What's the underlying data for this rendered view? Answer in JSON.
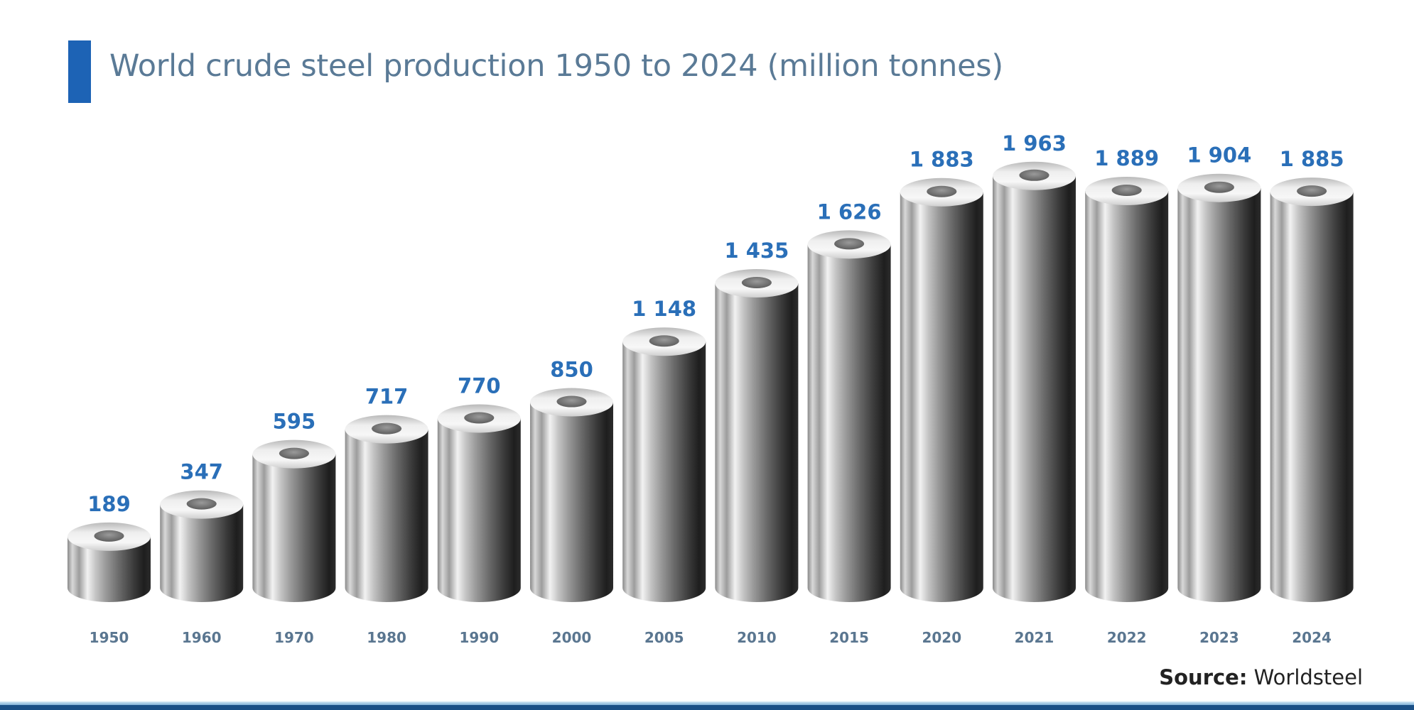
{
  "chart_data": {
    "type": "bar",
    "style": "3d-cylinder",
    "title": "World crude steel production 1950 to 2024 (million tonnes)",
    "xlabel": "",
    "ylabel": "",
    "categories": [
      "1950",
      "1960",
      "1970",
      "1980",
      "1990",
      "2000",
      "2005",
      "2010",
      "2015",
      "2020",
      "2021",
      "2022",
      "2023",
      "2024"
    ],
    "values": [
      189,
      347,
      595,
      717,
      770,
      850,
      1148,
      1435,
      1626,
      1883,
      1963,
      1889,
      1904,
      1885
    ],
    "value_labels": [
      "189",
      "347",
      "595",
      "717",
      "770",
      "850",
      "1 148",
      "1 435",
      "1 626",
      "1 883",
      "1 963",
      "1 889",
      "1 904",
      "1 885"
    ],
    "units": "million tonnes",
    "grid": false,
    "legend": "none",
    "source_label": "Source:",
    "source_value": "Worldsteel"
  },
  "colors": {
    "accent": "#1d63b5",
    "title": "#5a7a96",
    "value_label": "#2a6fb8",
    "year_label": "#5a7690",
    "band": "#1a4f86"
  }
}
